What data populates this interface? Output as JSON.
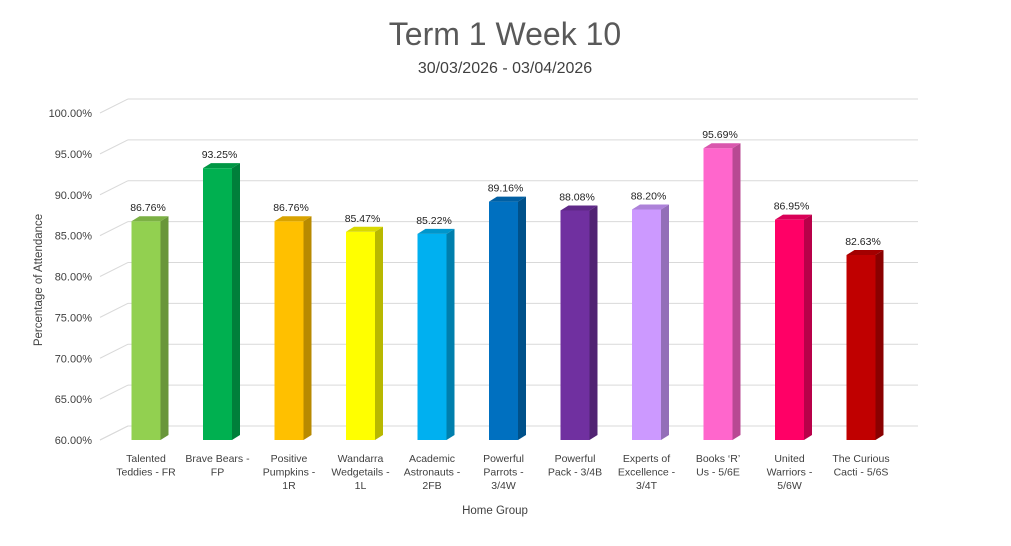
{
  "chart_data": {
    "type": "bar",
    "title": "Term 1 Week 10",
    "subtitle": "30/03/2026 - 03/04/2026",
    "xlabel": "Home Group",
    "ylabel": "Percentage of Attendance",
    "ylim": [
      60,
      100
    ],
    "yticks": [
      "60.00%",
      "65.00%",
      "70.00%",
      "75.00%",
      "80.00%",
      "85.00%",
      "90.00%",
      "95.00%",
      "100.00%"
    ],
    "grid": true,
    "legend": "none",
    "categories": [
      [
        "Talented",
        "Teddies - FR"
      ],
      [
        "Brave Bears -",
        "FP"
      ],
      [
        "Positive",
        "Pumpkins -",
        "1R"
      ],
      [
        "Wandarra",
        "Wedgetails -",
        "1L"
      ],
      [
        "Academic",
        "Astronauts -",
        "2FB"
      ],
      [
        "Powerful",
        "Parrots -",
        "3/4W"
      ],
      [
        "Powerful",
        "Pack - 3/4B"
      ],
      [
        "Experts of",
        "Excellence -",
        "3/4T"
      ],
      [
        "Books ‘R’",
        "Us - 5/6E"
      ],
      [
        "United",
        "Warriors -",
        "5/6W"
      ],
      [
        "The Curious",
        "Cacti - 5/6S"
      ]
    ],
    "values": [
      86.76,
      93.25,
      86.76,
      85.47,
      85.22,
      89.16,
      88.08,
      88.2,
      95.69,
      86.95,
      82.63
    ],
    "data_labels": [
      "86.76%",
      "93.25%",
      "86.76%",
      "85.47%",
      "85.22%",
      "89.16%",
      "88.08%",
      "88.20%",
      "95.69%",
      "86.95%",
      "82.63%"
    ],
    "colors": [
      "#92D050",
      "#00B050",
      "#FFC000",
      "#FFFF00",
      "#00B0F0",
      "#0070C0",
      "#7030A0",
      "#CC99FF",
      "#FF66CC",
      "#FF0066",
      "#C00000"
    ]
  }
}
